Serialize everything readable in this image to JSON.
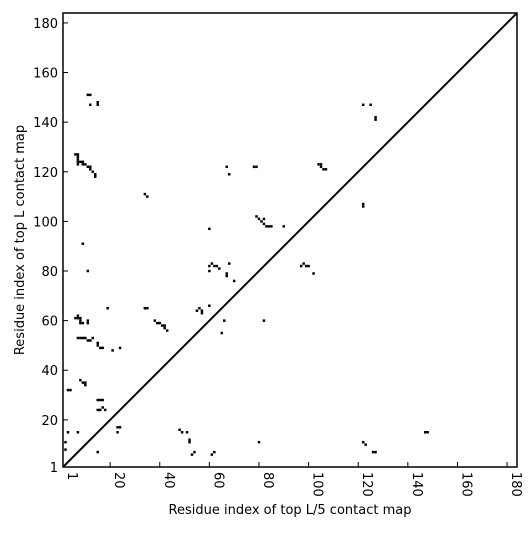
{
  "chart_data": {
    "type": "scatter",
    "xlabel": "Residue index of top L/5 contact map",
    "ylabel": "Residue index of top L contact map",
    "color": "#000000",
    "xlim": [
      1,
      184
    ],
    "ylim": [
      1,
      184
    ],
    "xticks": [
      1,
      20,
      40,
      60,
      80,
      100,
      120,
      140,
      160,
      180
    ],
    "yticks": [
      1,
      20,
      40,
      60,
      80,
      100,
      120,
      140,
      160,
      180
    ],
    "x": [
      6,
      7,
      7,
      7,
      7,
      7,
      8,
      9,
      9,
      10,
      11,
      12,
      12,
      13,
      14,
      14,
      11,
      12,
      12,
      15,
      15,
      9,
      11,
      34,
      35,
      60,
      67,
      68,
      78,
      79,
      79,
      80,
      81,
      82,
      82,
      83,
      84,
      85,
      90,
      97,
      98,
      99,
      100,
      102,
      104,
      105,
      105,
      106,
      107,
      122,
      125,
      127,
      127,
      122,
      122,
      60,
      61,
      62,
      63,
      64,
      60,
      67,
      67,
      68,
      70,
      60,
      55,
      56,
      57,
      57,
      66,
      82,
      34,
      35,
      38,
      39,
      40,
      41,
      42,
      42,
      43,
      65,
      19,
      6,
      7,
      7,
      8,
      8,
      8,
      9,
      11,
      11,
      7,
      8,
      9,
      10,
      11,
      12,
      13,
      15,
      15,
      16,
      17,
      21,
      24,
      8,
      9,
      10,
      10,
      3,
      4,
      15,
      16,
      17,
      15,
      16,
      17,
      18,
      23,
      24,
      23,
      7,
      3,
      15,
      2,
      2,
      49,
      48,
      51,
      52,
      52,
      54,
      53,
      61,
      62,
      80,
      122,
      123,
      126,
      127,
      147,
      148
    ],
    "y": [
      127,
      127,
      126,
      125,
      124,
      123,
      124,
      124,
      123,
      123,
      122,
      122,
      121,
      120,
      119,
      118,
      151,
      151,
      147,
      147,
      148,
      91,
      80,
      111,
      110,
      97,
      122,
      119,
      122,
      122,
      102,
      101,
      100,
      101,
      99,
      98,
      98,
      98,
      98,
      82,
      83,
      82,
      82,
      79,
      123,
      123,
      122,
      121,
      121,
      147,
      147,
      142,
      141,
      107,
      106,
      82,
      83,
      82,
      82,
      81,
      80,
      79,
      78,
      83,
      76,
      66,
      64,
      65,
      63,
      64,
      60,
      60,
      65,
      65,
      60,
      59,
      59,
      58,
      58,
      57,
      56,
      55,
      65,
      61,
      62,
      61,
      61,
      60,
      59,
      59,
      60,
      59,
      53,
      53,
      53,
      53,
      52,
      52,
      53,
      51,
      50,
      49,
      49,
      48,
      49,
      36,
      35,
      35,
      34,
      32,
      32,
      28,
      28,
      28,
      24,
      24,
      25,
      24,
      17,
      17,
      15,
      15,
      15,
      7,
      11,
      8,
      15,
      16,
      15,
      12,
      11,
      7,
      6,
      6,
      7,
      11,
      11,
      10,
      7,
      7,
      15,
      15
    ]
  }
}
